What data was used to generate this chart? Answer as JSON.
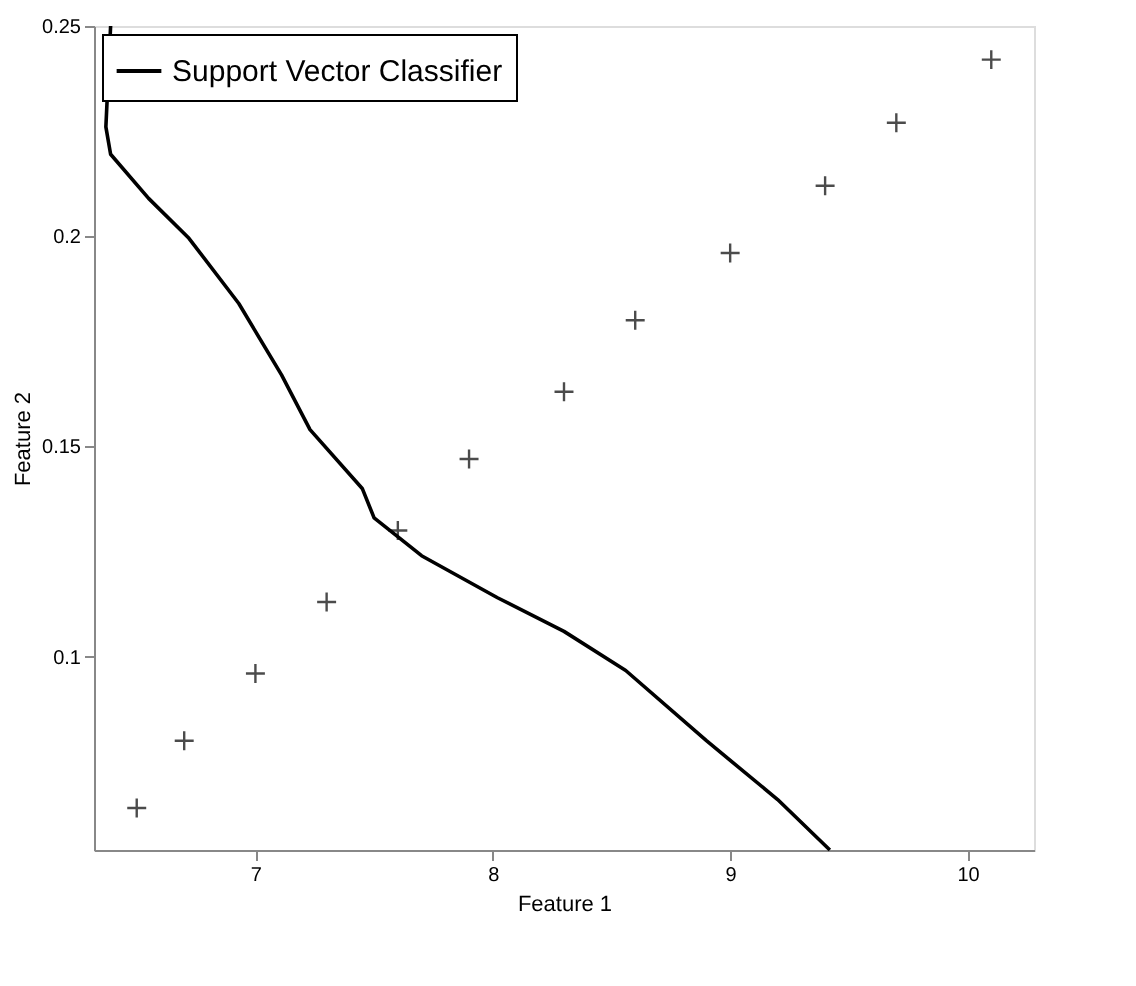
{
  "chart_data": {
    "type": "scatter",
    "xlabel": "Feature 1",
    "ylabel": "Feature 2",
    "xlim": [
      6.32,
      10.28
    ],
    "ylim": [
      0.054,
      0.25
    ],
    "xticks": [
      7,
      8,
      9,
      10
    ],
    "yticks": [
      0.1,
      0.15,
      0.2,
      0.25
    ],
    "grid": false,
    "legend": "top left",
    "series": [
      {
        "marker": "cross",
        "color": "#000000",
        "x": [
          6.5,
          6.7,
          7.0,
          7.3,
          7.6,
          7.9,
          8.3,
          8.6,
          9.0,
          9.4,
          9.7,
          10.1
        ],
        "values": [
          0.064,
          0.08,
          0.096,
          0.113,
          0.13,
          0.147,
          0.163,
          0.18,
          0.196,
          0.212,
          0.227,
          0.242
        ]
      },
      {
        "type": "line",
        "name": "Support Vector Classifier",
        "color": "#000000",
        "line_style": "solid",
        "x": [
          6.39,
          6.37,
          6.39,
          6.55,
          6.72,
          6.93,
          7.11,
          7.23,
          7.45,
          7.5,
          7.7,
          8.02,
          8.3,
          8.56,
          8.9,
          9.2,
          9.42
        ],
        "values": [
          0.25,
          0.226,
          0.2195,
          0.209,
          0.1995,
          0.184,
          0.167,
          0.154,
          0.14,
          0.133,
          0.124,
          0.114,
          0.106,
          0.0967,
          0.08,
          0.066,
          0.054
        ]
      }
    ]
  }
}
